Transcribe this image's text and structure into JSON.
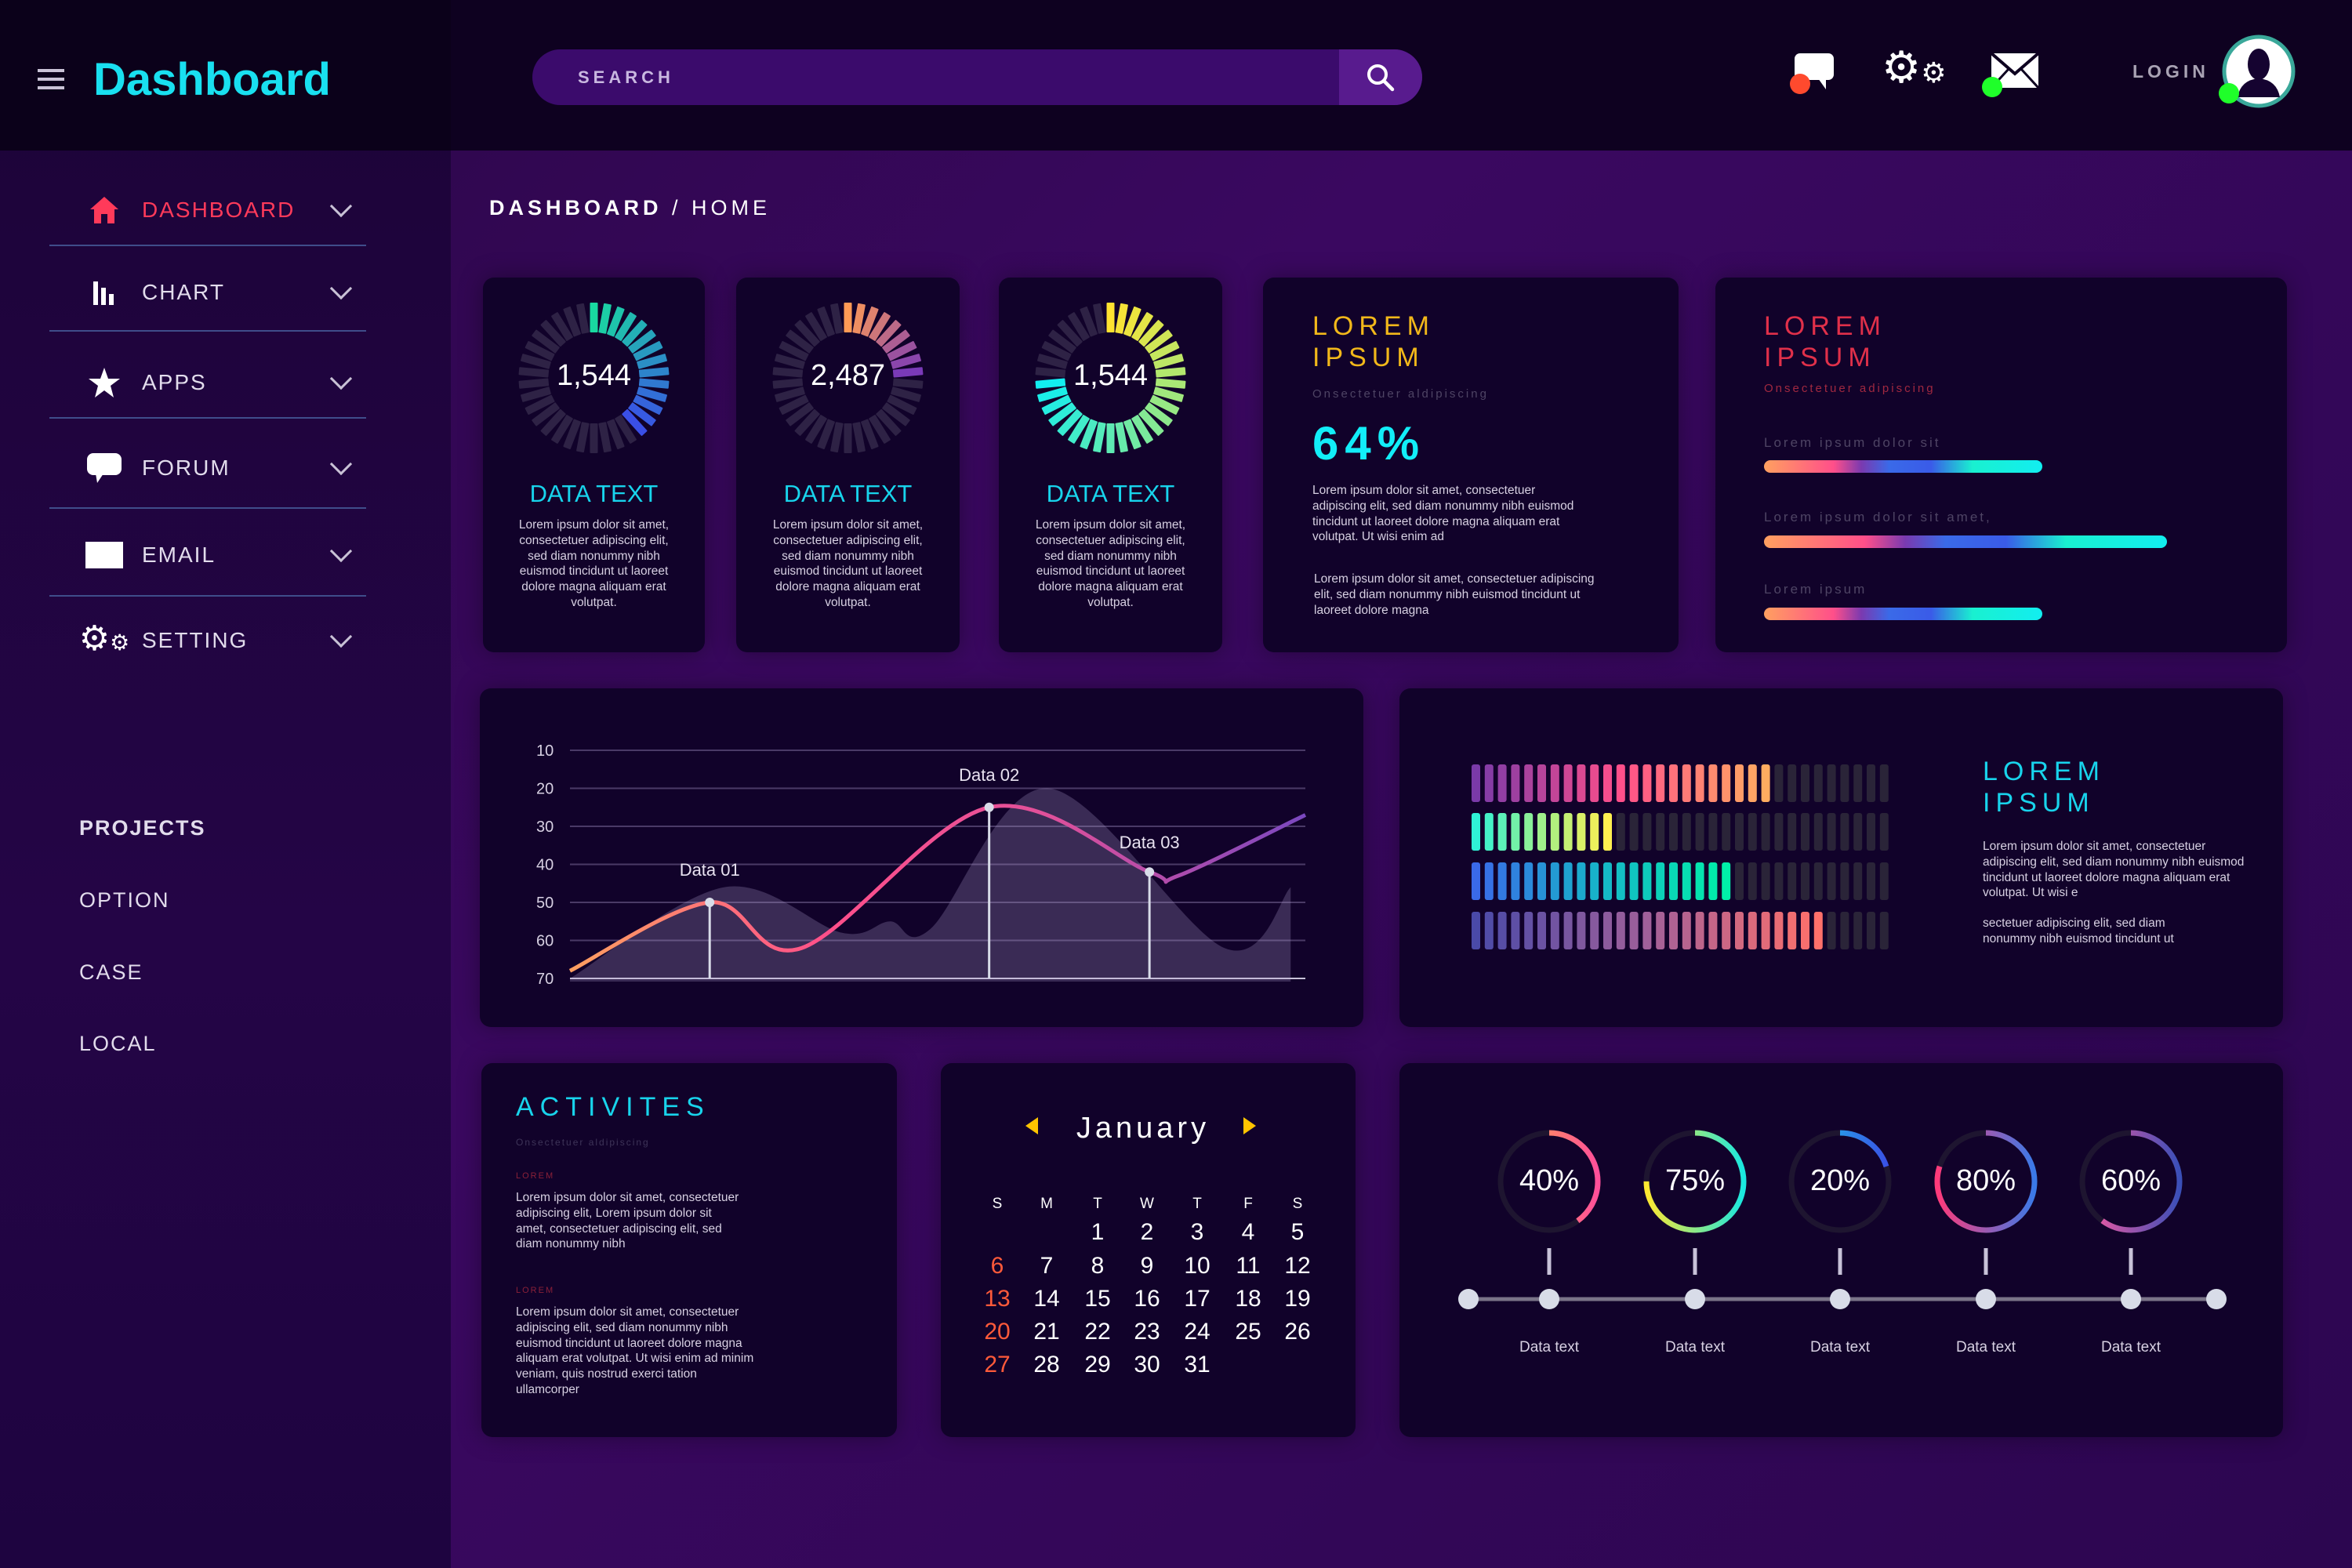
{
  "header": {
    "title": "Dashboard",
    "search_placeholder": "SEARCH",
    "login_label": "LOGIN",
    "icons": [
      "menu-icon",
      "search-icon",
      "chat-icon",
      "gears-icon",
      "mail-icon",
      "avatar-icon"
    ],
    "status_colors": {
      "chat": "#ff4a2e",
      "mail": "#1fff2a",
      "avatar": "#1fff2a"
    }
  },
  "sidebar": {
    "items": [
      {
        "label": "DASHBOARD",
        "icon": "home-icon",
        "active": true
      },
      {
        "label": "CHART",
        "icon": "bar-chart-icon"
      },
      {
        "label": "APPS",
        "icon": "star-icon"
      },
      {
        "label": "FORUM",
        "icon": "chat-icon"
      },
      {
        "label": "EMAIL",
        "icon": "mail-icon"
      },
      {
        "label": "SETTING",
        "icon": "gears-icon"
      }
    ],
    "projects_heading": "PROJECTS",
    "projects": [
      "OPTION",
      "CASE",
      "LOCAL"
    ]
  },
  "breadcrumb": {
    "root": "DASHBOARD",
    "sep": "/",
    "current": "HOME"
  },
  "stat_cards": [
    {
      "value": "1,544",
      "fill": 0.42,
      "title": "DATA TEXT",
      "text": "Lorem ipsum dolor sit amet, consectetuer adipiscing elit, sed diam nonummy nibh euismod tincidunt ut laoreet dolore magna aliquam erat volutpat.",
      "colors": [
        "#19d9a0",
        "#3a4fe6"
      ]
    },
    {
      "value": "2,487",
      "fill": 0.25,
      "title": "DATA TEXT",
      "text": "Lorem ipsum dolor sit amet, consectetuer adipiscing elit, sed diam nonummy nibh euismod tincidunt ut laoreet dolore magna aliquam erat volutpat.",
      "colors": [
        "#ff9a55",
        "#7a3ab8"
      ]
    },
    {
      "value": "1,544",
      "fill": 0.75,
      "title": "DATA TEXT",
      "text": "Lorem ipsum dolor sit amet, consectetuer adipiscing elit, sed diam nonummy nibh euismod tincidunt ut laoreet dolore magna aliquam erat volutpat.",
      "colors": [
        "#ffe330",
        "#12eef0"
      ]
    }
  ],
  "percent_card": {
    "title1": "LOREM",
    "title2": "IPSUM",
    "subtitle": "Onsectetuer aldipiscing",
    "value": "64%",
    "para1": "Lorem ipsum dolor sit amet, consectetuer adipiscing elit, sed diam nonummy nibh euismod tincidunt ut laoreet dolore magna aliquam erat volutpat. Ut wisi enim ad",
    "para2": "Lorem ipsum dolor sit amet, consectetuer adipiscing elit, sed diam nonummy nibh euismod tincidunt ut laoreet dolore magna"
  },
  "progress_card": {
    "title1": "LOREM",
    "title2": "IPSUM",
    "subtitle": "Onsectetuer adipiscing",
    "bars": [
      {
        "label": "Lorem ipsum dolor sit",
        "value": 0.69
      },
      {
        "label": "Lorem ipsum dolor sit amet,",
        "value": 1.0
      },
      {
        "label": "Lorem ipsum",
        "value": 0.69
      }
    ]
  },
  "chart_data": [
    {
      "type": "line",
      "yticks": [
        10,
        20,
        30,
        40,
        50,
        60,
        70
      ],
      "ylim": [
        10,
        70
      ],
      "y_inverted": true,
      "grid": true,
      "series": [
        {
          "x": [
            0,
            19,
            31.5,
            57,
            78.8,
            82.7,
            100
          ],
          "y": [
            68,
            50,
            62,
            25,
            42,
            43,
            27
          ]
        }
      ],
      "area": {
        "x": [
          0,
          21,
          37,
          43.5,
          49,
          65,
          89,
          98
        ],
        "y": [
          70,
          46,
          58,
          55,
          57,
          20,
          62,
          46
        ]
      },
      "annotations": [
        {
          "label": "Data 01",
          "x": 19,
          "y": 50
        },
        {
          "label": "Data 02",
          "x": 57,
          "y": 25
        },
        {
          "label": "Data 03",
          "x": 78.8,
          "y": 42
        }
      ]
    },
    {
      "type": "bar",
      "segments_per_row": 32,
      "rows": [
        {
          "filled": 23,
          "colors": [
            "#7a3aa8",
            "#ff4f8a",
            "#ffad60"
          ]
        },
        {
          "filled": 11,
          "colors": [
            "#2ff2d6",
            "#9ff08a",
            "#fff050"
          ]
        },
        {
          "filled": 20,
          "colors": [
            "#3a6ae8",
            "#16b6c8",
            "#00f0a8"
          ]
        },
        {
          "filled": 27,
          "colors": [
            "#4a4aa8",
            "#a0609a",
            "#ff706a"
          ]
        }
      ]
    }
  ],
  "bars_card": {
    "title1": "LOREM",
    "title2": "IPSUM",
    "para1": "Lorem ipsum dolor sit amet, consectetuer adipiscing elit, sed diam nonummy nibh euismod tincidunt ut laoreet dolore magna aliquam erat volutpat. Ut wisi e",
    "para2": "sectetuer adipiscing elit, sed diam nonummy nibh euismod tincidunt ut"
  },
  "activities": {
    "title": "ACTIVITES",
    "subtitle": "Onsectetuer aldipiscing",
    "entries": [
      {
        "label": "LOREM",
        "text": "Lorem ipsum dolor sit amet, consectetuer adipiscing elit, Lorem ipsum dolor sit amet, consectetuer adipiscing elit, sed diam nonummy nibh"
      },
      {
        "label": "LOREM",
        "text": "Lorem ipsum dolor sit amet, consectetuer adipiscing elit, sed diam nonummy nibh euismod tincidunt ut laoreet dolore magna aliquam erat volutpat. Ut wisi enim ad minim veniam, quis nostrud exerci tation ullamcorper"
      }
    ]
  },
  "calendar": {
    "month": "January",
    "weekdays": [
      "S",
      "M",
      "T",
      "W",
      "T",
      "F",
      "S"
    ],
    "first_weekday": 2,
    "days": 31,
    "sunday_color": "#ff5a3a"
  },
  "gauges": [
    {
      "value": "40%",
      "fill": 0.4,
      "label": "Data text",
      "colors": [
        "#ffb040",
        "#ff4f9a"
      ]
    },
    {
      "value": "75%",
      "fill": 0.75,
      "label": "Data text",
      "colors": [
        "#ffe830",
        "#19e8e0"
      ]
    },
    {
      "value": "20%",
      "fill": 0.2,
      "label": "Data text",
      "colors": [
        "#19d8e8",
        "#3a4fe6"
      ]
    },
    {
      "value": "80%",
      "fill": 0.8,
      "label": "Data text",
      "colors": [
        "#ff3a7a",
        "#3a7ae8"
      ]
    },
    {
      "value": "60%",
      "fill": 0.6,
      "label": "Data text",
      "colors": [
        "#ff5aa0",
        "#3a4fb8"
      ]
    }
  ]
}
